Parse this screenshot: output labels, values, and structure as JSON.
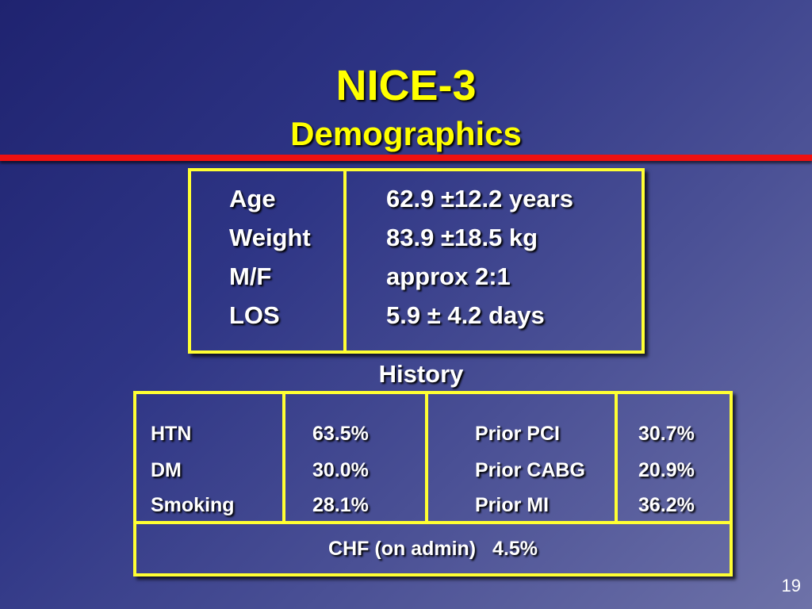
{
  "slide": {
    "title": "NICE-3",
    "subtitle": "Demographics",
    "page_number": "19"
  },
  "demographics": {
    "rows": [
      {
        "label": "Age",
        "value": "62.9 ±12.2 years"
      },
      {
        "label": "Weight",
        "value": "83.9 ±18.5 kg"
      },
      {
        "label": "M/F",
        "value": "approx 2:1"
      },
      {
        "label": "LOS",
        "value": "5.9 ± 4.2 days"
      }
    ]
  },
  "history": {
    "heading": "History",
    "rows": [
      {
        "left_label": "HTN",
        "left_value": "63.5%",
        "right_label": "Prior PCI",
        "right_value": "30.7%"
      },
      {
        "left_label": "DM",
        "left_value": "30.0%",
        "right_label": "Prior CABG",
        "right_value": "20.9%"
      },
      {
        "left_label": "Smoking",
        "left_value": "28.1%",
        "right_label": "Prior MI",
        "right_value": "36.2%"
      }
    ],
    "footer": "CHF (on admin)   4.5%"
  },
  "colors": {
    "title": "#ffff00",
    "rule": "#ee1111",
    "border": "#ffff33",
    "text": "#ffffff"
  }
}
